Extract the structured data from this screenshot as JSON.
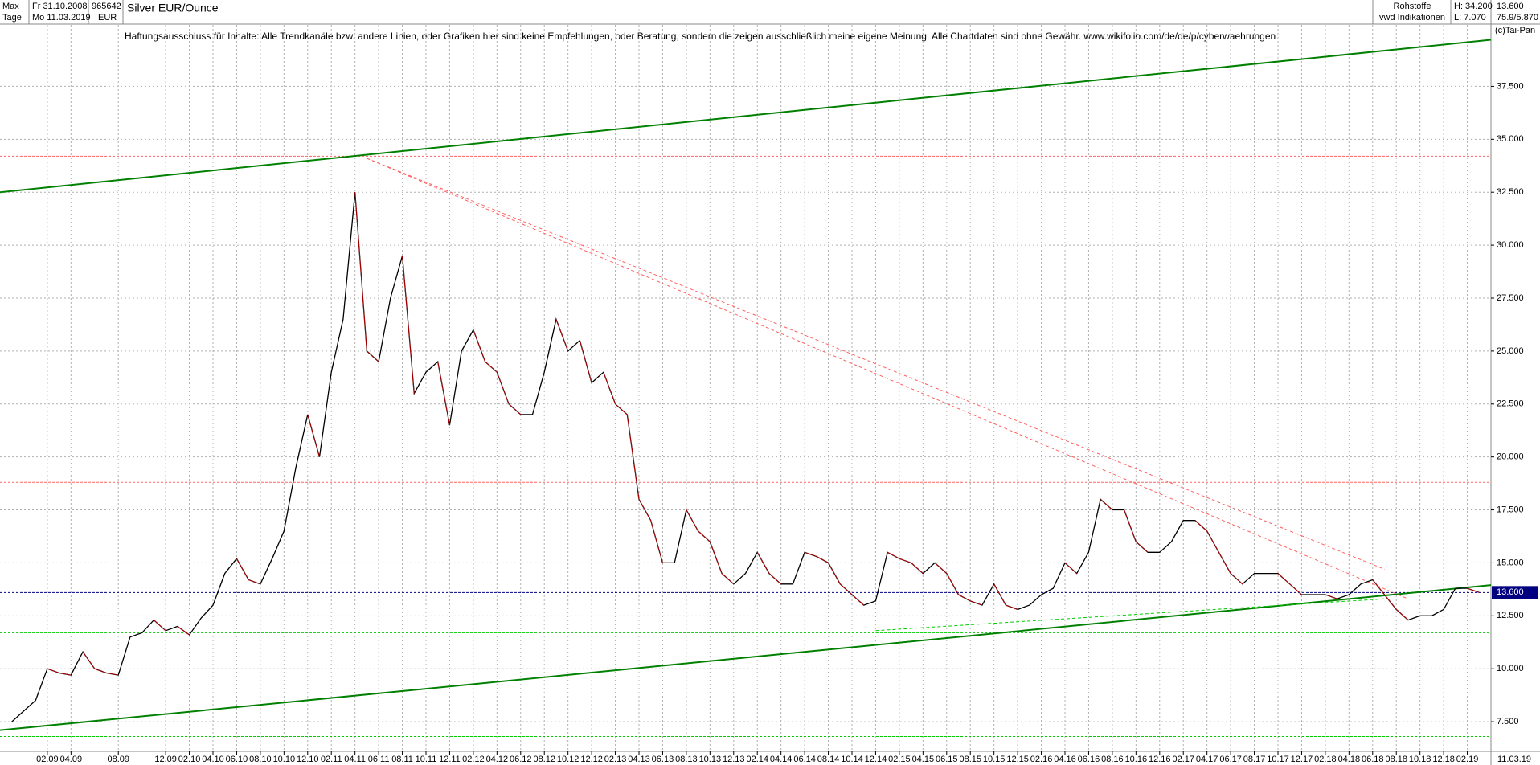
{
  "header": {
    "range": "Max",
    "start": "Fr 31.10.2008",
    "interval": "Tage",
    "end": "Mo 11.03.2019",
    "wkn": "965642",
    "currency": "EUR",
    "group": "Rohstoffe",
    "source": "vwd Indikationen",
    "high": "H: 34.200",
    "low": "L: 7.070",
    "last": "13.600",
    "extra": "75.9/5.870",
    "copyright": "(c)Tai-Pan"
  },
  "chart_data": {
    "type": "line",
    "title": "Silver EUR/Ounce",
    "annotation": "Haftungsausschluss für Inhalte: Alle Trendkanäle bzw. andere Linien, oder Grafiken hier sind keine Empfehlungen, oder Beratung, sondern die zeigen ausschließlich meine eigene Meinung. Alle Chartdaten sind ohne Gewähr.  www.wikifolio.com/de/de/p/cyberwaehrungen",
    "color": "#000000",
    "x": [
      "11.08",
      "12.08",
      "01.09",
      "02.09",
      "03.09",
      "04.09",
      "05.09",
      "06.09",
      "07.09",
      "08.09",
      "09.09",
      "10.09",
      "11.09",
      "12.09",
      "01.10",
      "02.10",
      "03.10",
      "04.10",
      "05.10",
      "06.10",
      "07.10",
      "08.10",
      "09.10",
      "10.10",
      "11.10",
      "12.10",
      "01.11",
      "02.11",
      "03.11",
      "04.11",
      "05.11",
      "06.11",
      "07.11",
      "08.11",
      "09.11",
      "10.11",
      "11.11",
      "12.11",
      "01.12",
      "02.12",
      "03.12",
      "04.12",
      "05.12",
      "06.12",
      "07.12",
      "08.12",
      "09.12",
      "10.12",
      "11.12",
      "12.12",
      "01.13",
      "02.13",
      "03.13",
      "04.13",
      "05.13",
      "06.13",
      "07.13",
      "08.13",
      "09.13",
      "10.13",
      "11.13",
      "12.13",
      "01.14",
      "02.14",
      "03.14",
      "04.14",
      "05.14",
      "06.14",
      "07.14",
      "08.14",
      "09.14",
      "10.14",
      "11.14",
      "12.14",
      "01.15",
      "02.15",
      "03.15",
      "04.15",
      "05.15",
      "06.15",
      "07.15",
      "08.15",
      "09.15",
      "10.15",
      "11.15",
      "12.15",
      "01.16",
      "02.16",
      "03.16",
      "04.16",
      "05.16",
      "06.16",
      "07.16",
      "08.16",
      "09.16",
      "10.16",
      "11.16",
      "12.16",
      "01.17",
      "02.17",
      "03.17",
      "04.17",
      "05.17",
      "06.17",
      "07.17",
      "08.17",
      "09.17",
      "10.17",
      "11.17",
      "12.17",
      "01.18",
      "02.18",
      "03.18",
      "04.18",
      "05.18",
      "06.18",
      "07.18",
      "08.18",
      "09.18",
      "10.18",
      "11.18",
      "12.18",
      "01.19",
      "02.19",
      "03.19"
    ],
    "values": [
      7.5,
      8.0,
      8.5,
      10.0,
      9.8,
      9.7,
      10.8,
      10.0,
      9.8,
      9.7,
      11.5,
      11.7,
      12.3,
      11.8,
      12.0,
      11.6,
      12.4,
      13.0,
      14.5,
      15.2,
      14.2,
      14.0,
      15.2,
      16.5,
      19.5,
      22.0,
      20.0,
      24.0,
      26.5,
      32.5,
      25.0,
      24.5,
      27.5,
      29.5,
      23.0,
      24.0,
      24.5,
      21.5,
      25.0,
      26.0,
      24.5,
      24.0,
      22.5,
      22.0,
      22.0,
      24.0,
      26.5,
      25.0,
      25.5,
      23.5,
      24.0,
      22.5,
      22.0,
      18.0,
      17.0,
      15.0,
      15.0,
      17.5,
      16.5,
      16.0,
      14.5,
      14.0,
      14.5,
      15.5,
      14.5,
      14.0,
      14.0,
      15.5,
      15.3,
      15.0,
      14.0,
      13.5,
      13.0,
      13.2,
      15.5,
      15.2,
      15.0,
      14.5,
      15.0,
      14.5,
      13.5,
      13.2,
      13.0,
      14.0,
      13.0,
      12.8,
      13.0,
      13.5,
      13.8,
      15.0,
      14.5,
      15.5,
      18.0,
      17.5,
      17.5,
      16.0,
      15.5,
      15.5,
      16.0,
      17.0,
      17.0,
      16.5,
      15.5,
      14.5,
      14.0,
      14.5,
      14.5,
      14.5,
      14.0,
      13.5,
      13.5,
      13.5,
      13.3,
      13.5,
      14.0,
      14.2,
      13.5,
      12.8,
      12.3,
      12.5,
      12.5,
      12.8,
      13.8,
      13.8,
      13.6
    ],
    "xlim": [
      "10.08",
      "04.19"
    ],
    "xticks": [
      "02.09",
      "04.09",
      "08.09",
      "12.09",
      "02.10",
      "04.10",
      "06.10",
      "08.10",
      "10.10",
      "12.10",
      "02.11",
      "04.11",
      "06.11",
      "08.11",
      "10.11",
      "12.11",
      "02.12",
      "04.12",
      "06.12",
      "08.12",
      "10.12",
      "12.12",
      "02.13",
      "04.13",
      "06.13",
      "08.13",
      "10.13",
      "12.13",
      "02.14",
      "04.14",
      "06.14",
      "08.14",
      "10.14",
      "12.14",
      "02.15",
      "04.15",
      "06.15",
      "08.15",
      "10.15",
      "12.15",
      "02.16",
      "04.16",
      "06.16",
      "08.16",
      "10.16",
      "12.16",
      "02.17",
      "04.17",
      "06.17",
      "08.17",
      "10.17",
      "12.17",
      "02.18",
      "04.18",
      "06.18",
      "08.18",
      "10.18",
      "12.18",
      "02.19"
    ],
    "last_date": "11.03.19",
    "ylim": [
      6.1,
      40.4
    ],
    "yticks": [
      {
        "value": 7.5,
        "label": "7.500"
      },
      {
        "value": 10,
        "label": "10.000"
      },
      {
        "value": 12.5,
        "label": "12.500"
      },
      {
        "value": 15,
        "label": "15.000"
      },
      {
        "value": 17.5,
        "label": "17.500"
      },
      {
        "value": 20,
        "label": "20.000"
      },
      {
        "value": 22.5,
        "label": "22.500"
      },
      {
        "value": 25,
        "label": "25.000"
      },
      {
        "value": 27.5,
        "label": "27.500"
      },
      {
        "value": 30,
        "label": "30.000"
      },
      {
        "value": 32.5,
        "label": "32.500"
      },
      {
        "value": 35,
        "label": "35.000"
      },
      {
        "value": 37.5,
        "label": "37.500"
      }
    ],
    "grid": true,
    "last_price": {
      "value": 13.6,
      "label": "13.600",
      "color": "#000080"
    },
    "levels": [
      {
        "value": 34.2,
        "color": "#ff6060"
      },
      {
        "value": 18.8,
        "color": "#ff6060"
      },
      {
        "value": 11.7,
        "color": "#00cc00"
      },
      {
        "value": 6.8,
        "color": "#00cc00"
      }
    ],
    "trendlines": [
      {
        "x": [
          "10.08",
          "04.19"
        ],
        "y": [
          32.5,
          39.7
        ],
        "color": "#008000",
        "dash": false
      },
      {
        "x": [
          "10.08",
          "04.19"
        ],
        "y": [
          7.1,
          13.95
        ],
        "color": "#008000",
        "dash": false
      },
      {
        "x": [
          "05.11",
          "07.18"
        ],
        "y": [
          34.1,
          14.7
        ],
        "color": "#ff6060",
        "dash": true
      },
      {
        "x": [
          "05.11",
          "09.18"
        ],
        "y": [
          34.1,
          13.3
        ],
        "color": "#ff6060",
        "dash": true
      },
      {
        "x": [
          "12.14",
          "07.18"
        ],
        "y": [
          11.8,
          13.3
        ],
        "color": "#00cc00",
        "dash": true
      }
    ]
  }
}
